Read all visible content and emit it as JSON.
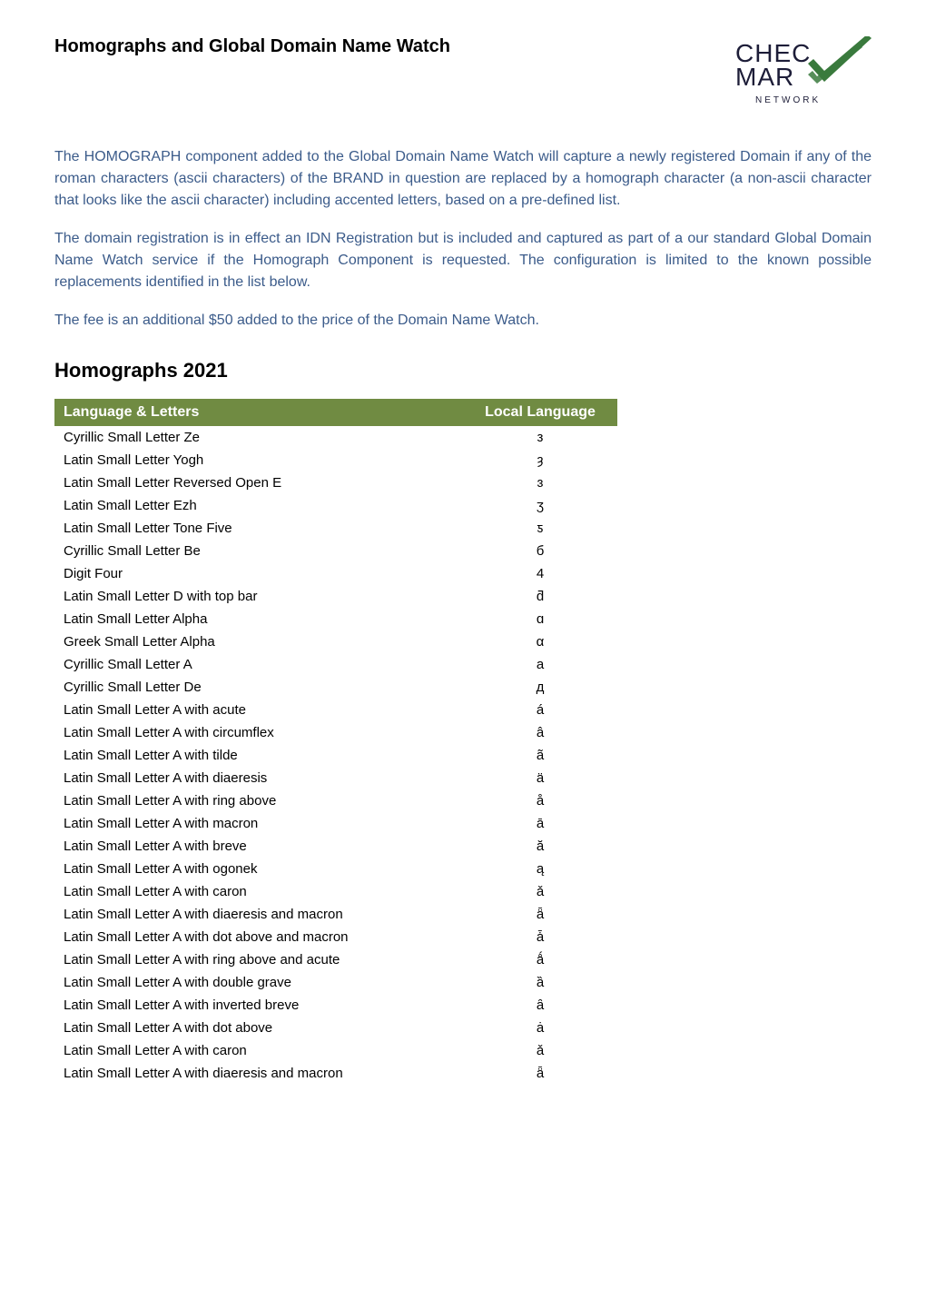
{
  "header": {
    "page_title": "Homographs and Global Domain Name Watch"
  },
  "intro": {
    "para1": "The HOMOGRAPH component added to the Global Domain Name Watch will capture a newly registered Domain if any of the roman characters (ascii characters) of the BRAND in question are replaced by a homograph character (a non-ascii character that looks like the ascii character) including accented letters, based on a pre-defined list.",
    "para2": "The domain registration is in effect an IDN Registration but is included and captured as part of a our standard Global Domain Name Watch service if the Homograph Component is requested. The configuration is limited to the known possible replacements identified in the list below.",
    "para3": "The fee is an additional $50 added to the price of the Domain Name Watch."
  },
  "section": {
    "heading": "Homographs 2021",
    "col_language": "Language & Letters",
    "col_local": "Local Language"
  },
  "rows": [
    {
      "name": "Cyrillic Small Letter Ze",
      "char": "з"
    },
    {
      "name": "Latin Small Letter Yogh",
      "char": "ȝ"
    },
    {
      "name": "Latin Small Letter Reversed Open E",
      "char": "ɜ"
    },
    {
      "name": "Latin Small Letter Ezh",
      "char": "ʒ"
    },
    {
      "name": "Latin Small Letter Tone Five",
      "char": "ƽ"
    },
    {
      "name": "Cyrillic Small Letter Be",
      "char": "б"
    },
    {
      "name": "Digit Four",
      "char": "4"
    },
    {
      "name": "Latin Small Letter D with top bar",
      "char": "ƌ"
    },
    {
      "name": "Latin Small Letter Alpha",
      "char": "ɑ"
    },
    {
      "name": "Greek Small Letter Alpha",
      "char": "α"
    },
    {
      "name": "Cyrillic Small Letter A",
      "char": "а"
    },
    {
      "name": "Cyrillic Small Letter De",
      "char": "д"
    },
    {
      "name": "Latin Small Letter A with acute",
      "char": "á"
    },
    {
      "name": "Latin Small Letter A with circumflex",
      "char": "â"
    },
    {
      "name": "Latin Small Letter A with tilde",
      "char": "ã"
    },
    {
      "name": "Latin Small Letter A with diaeresis",
      "char": "ä"
    },
    {
      "name": "Latin Small Letter A with ring above",
      "char": "å"
    },
    {
      "name": "Latin Small Letter A with macron",
      "char": "ā"
    },
    {
      "name": "Latin Small Letter A with breve",
      "char": "ă"
    },
    {
      "name": "Latin Small Letter A with ogonek",
      "char": "ą"
    },
    {
      "name": "Latin Small Letter A with caron",
      "char": "ǎ"
    },
    {
      "name": "Latin Small Letter A with diaeresis and macron",
      "char": "ǟ"
    },
    {
      "name": "Latin Small Letter A with dot above and macron",
      "char": "ǡ"
    },
    {
      "name": "Latin Small Letter A with ring above and acute",
      "char": "ǻ"
    },
    {
      "name": "Latin Small Letter A with double grave",
      "char": "ȁ"
    },
    {
      "name": "Latin Small Letter A with inverted breve",
      "char": "ȃ"
    },
    {
      "name": "Latin Small Letter A with dot above",
      "char": "ȧ"
    },
    {
      "name": "Latin Small Letter A with caron",
      "char": "ǎ"
    },
    {
      "name": "Latin Small Letter A with diaeresis and macron",
      "char": "ǟ"
    }
  ],
  "colors": {
    "intro_text": "#3b5b8a",
    "table_header_bg": "#708b42",
    "table_header_fg": "#ffffff",
    "body_text": "#000000",
    "logo_green": "#3a7a3d",
    "logo_dark": "#1d1d38"
  }
}
